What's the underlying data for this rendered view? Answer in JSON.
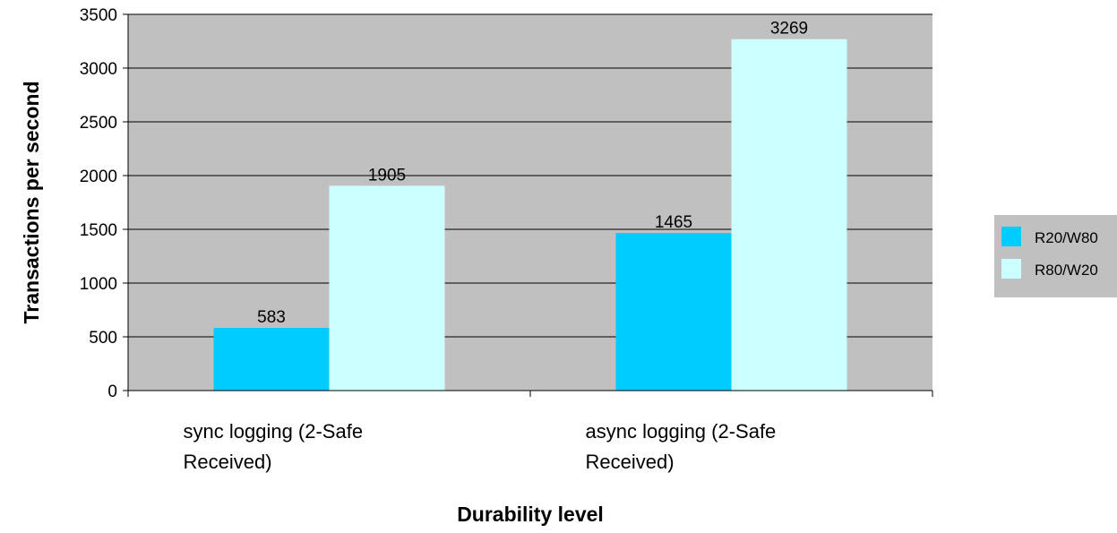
{
  "chart_data": {
    "type": "bar",
    "title": "",
    "xlabel": "Durability level",
    "ylabel": "Transactions per second",
    "categories": [
      [
        "sync logging (2-Safe",
        "Received)"
      ],
      [
        "async logging (2-Safe",
        "Received)"
      ]
    ],
    "series": [
      {
        "name": "R20/W80",
        "values": [
          583,
          1465
        ],
        "color": "#00ccff"
      },
      {
        "name": "R80/W20",
        "values": [
          1905,
          3269
        ],
        "color": "#ccffff"
      }
    ],
    "ylim": [
      0,
      3500
    ],
    "yticks": [
      0,
      500,
      1000,
      1500,
      2000,
      2500,
      3000,
      3500
    ],
    "grid": true,
    "legend_position": "right",
    "plot_background": "#c0c0c0",
    "data_labels": true
  }
}
